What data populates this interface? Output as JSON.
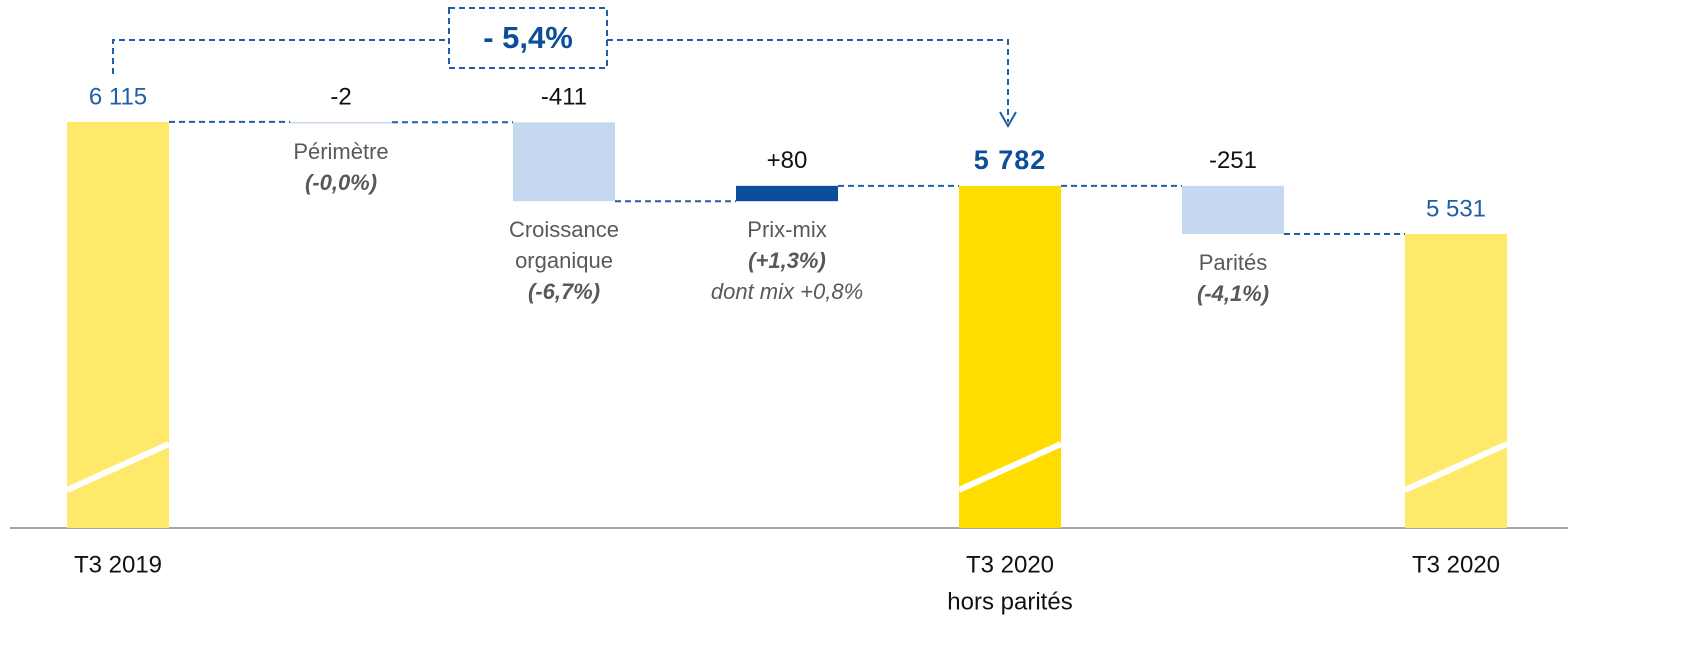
{
  "chart_data": {
    "type": "waterfall",
    "annotation": "- 5,4%",
    "categories": [
      [
        "T3 2019"
      ],
      null,
      null,
      null,
      [
        "T3 2020",
        "hors parités"
      ],
      null,
      [
        "T3 2020"
      ]
    ],
    "measures": [
      "total",
      "relative",
      "relative",
      "relative",
      "total",
      "relative",
      "total"
    ],
    "values": [
      6115,
      -2,
      -411,
      80,
      5782,
      -251,
      5531
    ],
    "value_labels": [
      "6 115",
      "-2",
      "-411",
      "+80",
      "5 782",
      "-251",
      "5 531"
    ],
    "colors": [
      "#ffe96b",
      "#c6d8f0",
      "#c6d8f0",
      "#0b4f9c",
      "#ffdd00",
      "#c6d8f0",
      "#ffe96b"
    ],
    "bar_notes": [
      null,
      [
        "Périmètre",
        "(-0,0%)"
      ],
      [
        "Croissance",
        "organique",
        "(-6,7%)"
      ],
      [
        "Prix-mix",
        "(+1,3%)",
        "dont mix +0,8%"
      ],
      null,
      [
        "Parités",
        "(-4,1%)"
      ],
      null
    ],
    "ylim": [
      4000,
      6500
    ]
  }
}
